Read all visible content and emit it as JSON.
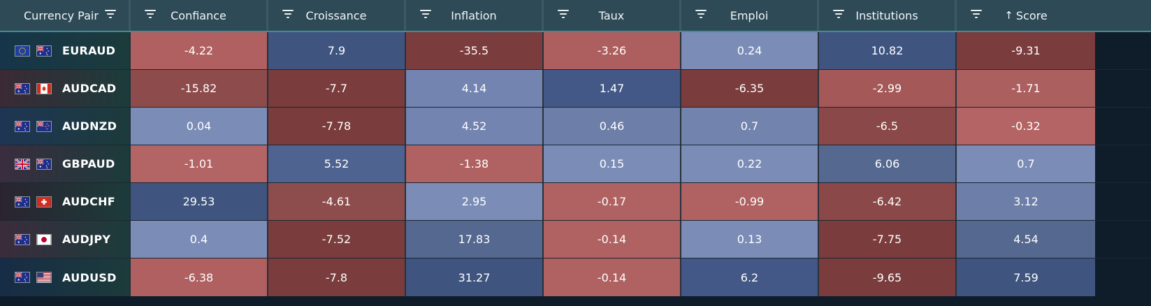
{
  "header": {
    "pair_label": "Currency Pair",
    "columns": [
      {
        "label": "Confiance",
        "sorted": false
      },
      {
        "label": "Croissance",
        "sorted": false
      },
      {
        "label": "Inflation",
        "sorted": false
      },
      {
        "label": "Taux",
        "sorted": false
      },
      {
        "label": "Emploi",
        "sorted": false
      },
      {
        "label": "Institutions",
        "sorted": false
      },
      {
        "label": "Score",
        "sorted": true,
        "sort_icon": "arrow-up-icon",
        "sort_glyph": "↑"
      }
    ],
    "filter_icon": "filter-icon"
  },
  "rows": [
    {
      "pair": "EURAUD",
      "flags": [
        "eu-flag-icon",
        "au-flag-icon"
      ],
      "pair_bg": "#16354a",
      "values": [
        "-4.22",
        "7.9",
        "-35.5",
        "-3.26",
        "0.24",
        "10.82",
        "-9.31"
      ],
      "colors": [
        "#b06060",
        "#3f5580",
        "#7a3c3c",
        "#ad5e5e",
        "#7b8db7",
        "#3f5580",
        "#7a3c3c"
      ]
    },
    {
      "pair": "AUDCAD",
      "flags": [
        "au-flag-icon",
        "ca-flag-icon"
      ],
      "pair_bg": "#3b2a35",
      "values": [
        "-15.82",
        "-7.7",
        "4.14",
        "1.47",
        "-6.35",
        "-2.99",
        "-1.71"
      ],
      "colors": [
        "#8d4b4b",
        "#7a3c3c",
        "#7384b0",
        "#435886",
        "#7a3c3c",
        "#a55858",
        "#ac5f5f"
      ]
    },
    {
      "pair": "AUDNZD",
      "flags": [
        "au-flag-icon",
        "nz-flag-icon"
      ],
      "pair_bg": "#1e3554",
      "values": [
        "0.04",
        "-7.78",
        "4.52",
        "0.46",
        "0.7",
        "-6.5",
        "-0.32"
      ],
      "colors": [
        "#7b8db7",
        "#7a3c3c",
        "#7384b0",
        "#6d7ea8",
        "#7283ad",
        "#8a4848",
        "#b46464"
      ]
    },
    {
      "pair": "GBPAUD",
      "flags": [
        "uk-flag-icon",
        "au-flag-icon"
      ],
      "pair_bg": "#3a2d3f",
      "values": [
        "-1.01",
        "5.52",
        "-1.38",
        "0.15",
        "0.22",
        "6.06",
        "0.7"
      ],
      "colors": [
        "#b36464",
        "#4f6390",
        "#b06161",
        "#7b8db7",
        "#7b8db7",
        "#55688f",
        "#7b8db7"
      ]
    },
    {
      "pair": "AUDCHF",
      "flags": [
        "au-flag-icon",
        "ch-flag-icon"
      ],
      "pair_bg": "#2a2430",
      "values": [
        "29.53",
        "-4.61",
        "2.95",
        "-0.17",
        "-0.99",
        "-6.42",
        "3.12"
      ],
      "colors": [
        "#3f5580",
        "#8e4d4d",
        "#7b8db7",
        "#b06161",
        "#b06161",
        "#8a4848",
        "#6d7ea8"
      ]
    },
    {
      "pair": "AUDJPY",
      "flags": [
        "au-flag-icon",
        "jp-flag-icon"
      ],
      "pair_bg": "#3b2c3c",
      "values": [
        "0.4",
        "-7.52",
        "17.83",
        "-0.14",
        "0.13",
        "-7.75",
        "4.54"
      ],
      "colors": [
        "#7b8db7",
        "#7a3c3c",
        "#55688f",
        "#b06161",
        "#7b8db7",
        "#7a3c3c",
        "#55688f"
      ]
    },
    {
      "pair": "AUDUSD",
      "flags": [
        "au-flag-icon",
        "us-flag-icon"
      ],
      "pair_bg": "#172c46",
      "values": [
        "-6.38",
        "-7.8",
        "31.27",
        "-0.14",
        "6.2",
        "-9.65",
        "7.59"
      ],
      "colors": [
        "#b06060",
        "#7a3c3c",
        "#3f5580",
        "#b06161",
        "#435886",
        "#7a3c3c",
        "#3f5580"
      ]
    }
  ]
}
